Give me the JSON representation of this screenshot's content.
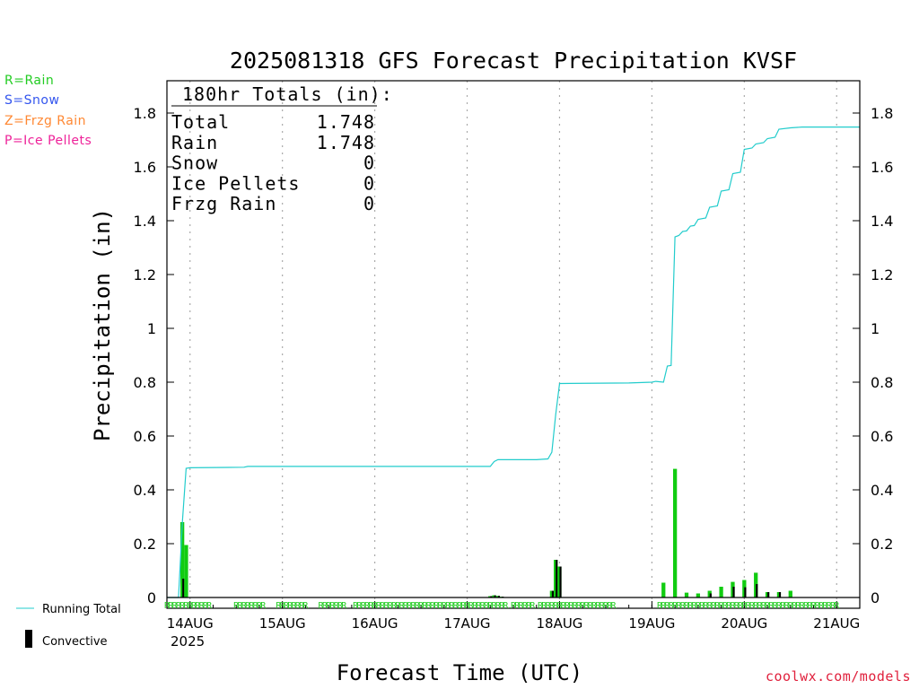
{
  "title": "2025081318 GFS Forecast Precipitation KVSF",
  "ylabel": "Precipitation (in)",
  "xlabel": "Forecast Time (UTC)",
  "source": "coolwx.com/models",
  "year_label": "2025",
  "ptype_legend": [
    {
      "label": "R=Rain",
      "color": "#22cc22"
    },
    {
      "label": "S=Snow",
      "color": "#3355ee"
    },
    {
      "label": "Z=Frzg Rain",
      "color": "#ff8833"
    },
    {
      "label": "P=Ice Pellets",
      "color": "#ee2299"
    }
  ],
  "bottom_legend": {
    "running_total": {
      "label": "Running Total",
      "color": "#22cccc"
    },
    "convective": {
      "label": "Convective",
      "color": "#000000"
    }
  },
  "totals_box": {
    "header": "180hr Totals (in):",
    "rows": [
      {
        "label": "Total",
        "value": "1.748"
      },
      {
        "label": "Rain",
        "value": "1.748"
      },
      {
        "label": "Snow",
        "value": "0"
      },
      {
        "label": "Ice Pellets",
        "value": "0"
      },
      {
        "label": "Frzg Rain",
        "value": "0"
      }
    ]
  },
  "chart_data": {
    "type": "bar",
    "x_unit": "forecast hour from 2025-08-13 18Z",
    "x_range": [
      0,
      180
    ],
    "ylim": [
      0,
      1.8
    ],
    "yticks": [
      0,
      0.2,
      0.4,
      0.6,
      0.8,
      1,
      1.2,
      1.4,
      1.6,
      1.8
    ],
    "ytick_labels": [
      "0",
      "0.2",
      "0.4",
      "0.6",
      "0.8",
      "1",
      "1.2",
      "1.4",
      "1.6",
      "1.8"
    ],
    "xticks": [
      {
        "hour": 6,
        "label": "14AUG"
      },
      {
        "hour": 30,
        "label": "15AUG"
      },
      {
        "hour": 54,
        "label": "16AUG"
      },
      {
        "hour": 78,
        "label": "17AUG"
      },
      {
        "hour": 102,
        "label": "18AUG"
      },
      {
        "hour": 126,
        "label": "19AUG"
      },
      {
        "hour": 150,
        "label": "20AUG"
      },
      {
        "hour": 174,
        "label": "21AUG"
      }
    ],
    "vgrid_hours": [
      6,
      30,
      54,
      78,
      102,
      126,
      150,
      174
    ],
    "bar_width_hours": 1,
    "precip_bars": [
      {
        "hour": 4,
        "total": 0.28,
        "convective": 0.07
      },
      {
        "hour": 5,
        "total": 0.195,
        "convective": 0.0
      },
      {
        "hour": 84,
        "total": 0.005,
        "convective": 0.005
      },
      {
        "hour": 85,
        "total": 0.008,
        "convective": 0.008
      },
      {
        "hour": 86,
        "total": 0.006,
        "convective": 0.006
      },
      {
        "hour": 87,
        "total": 0.003,
        "convective": 0.003
      },
      {
        "hour": 100,
        "total": 0.025,
        "convective": 0.025
      },
      {
        "hour": 101,
        "total": 0.14,
        "convective": 0.14
      },
      {
        "hour": 102,
        "total": 0.115,
        "convective": 0.115
      },
      {
        "hour": 129,
        "total": 0.055,
        "convective": 0.0
      },
      {
        "hour": 132,
        "total": 0.478,
        "convective": 0.0
      },
      {
        "hour": 135,
        "total": 0.018,
        "convective": 0.0
      },
      {
        "hour": 138,
        "total": 0.015,
        "convective": 0.0
      },
      {
        "hour": 141,
        "total": 0.025,
        "convective": 0.015
      },
      {
        "hour": 144,
        "total": 0.04,
        "convective": 0.0
      },
      {
        "hour": 147,
        "total": 0.058,
        "convective": 0.04
      },
      {
        "hour": 150,
        "total": 0.065,
        "convective": 0.038
      },
      {
        "hour": 153,
        "total": 0.092,
        "convective": 0.05
      },
      {
        "hour": 156,
        "total": 0.02,
        "convective": 0.02
      },
      {
        "hour": 159,
        "total": 0.02,
        "convective": 0.02
      },
      {
        "hour": 162,
        "total": 0.025,
        "convective": 0.0
      }
    ],
    "running_total": [
      [
        0,
        0
      ],
      [
        3,
        0.0
      ],
      [
        4,
        0.28
      ],
      [
        5,
        0.48
      ],
      [
        6,
        0.482
      ],
      [
        20,
        0.484
      ],
      [
        21,
        0.487
      ],
      [
        84,
        0.487
      ],
      [
        85,
        0.505
      ],
      [
        86,
        0.512
      ],
      [
        96,
        0.512
      ],
      [
        99,
        0.515
      ],
      [
        100,
        0.54
      ],
      [
        101,
        0.68
      ],
      [
        102,
        0.795
      ],
      [
        120,
        0.797
      ],
      [
        126,
        0.8
      ],
      [
        127,
        0.803
      ],
      [
        129,
        0.8
      ],
      [
        130,
        0.86
      ],
      [
        131,
        0.862
      ],
      [
        132,
        1.34
      ],
      [
        133,
        1.345
      ],
      [
        134,
        1.36
      ],
      [
        135,
        1.362
      ],
      [
        136,
        1.38
      ],
      [
        137,
        1.382
      ],
      [
        138,
        1.405
      ],
      [
        140,
        1.41
      ],
      [
        141,
        1.45
      ],
      [
        143,
        1.455
      ],
      [
        144,
        1.51
      ],
      [
        146,
        1.515
      ],
      [
        147,
        1.575
      ],
      [
        149,
        1.58
      ],
      [
        150,
        1.665
      ],
      [
        152,
        1.67
      ],
      [
        153,
        1.685
      ],
      [
        155,
        1.69
      ],
      [
        156,
        1.705
      ],
      [
        158,
        1.71
      ],
      [
        159,
        1.74
      ],
      [
        162,
        1.745
      ],
      [
        165,
        1.748
      ],
      [
        180,
        1.748
      ]
    ],
    "ptype_markers": [
      {
        "start": 0,
        "end": 11,
        "symbol": "R"
      },
      {
        "start": 18,
        "end": 25,
        "symbol": "R"
      },
      {
        "start": 29,
        "end": 36,
        "symbol": "R"
      },
      {
        "start": 40,
        "end": 46,
        "symbol": "R"
      },
      {
        "start": 49,
        "end": 55,
        "symbol": "R"
      },
      {
        "start": 56,
        "end": 76,
        "symbol": "R"
      },
      {
        "start": 77,
        "end": 88,
        "symbol": "R"
      },
      {
        "start": 90,
        "end": 95,
        "symbol": "R"
      },
      {
        "start": 97,
        "end": 116,
        "symbol": "R"
      },
      {
        "start": 128,
        "end": 174,
        "symbol": "R"
      }
    ],
    "bar_color": "#11cc11",
    "convective_color": "#000000",
    "line_color": "#22cccc",
    "grid": "dotted vertical at 00Z"
  }
}
